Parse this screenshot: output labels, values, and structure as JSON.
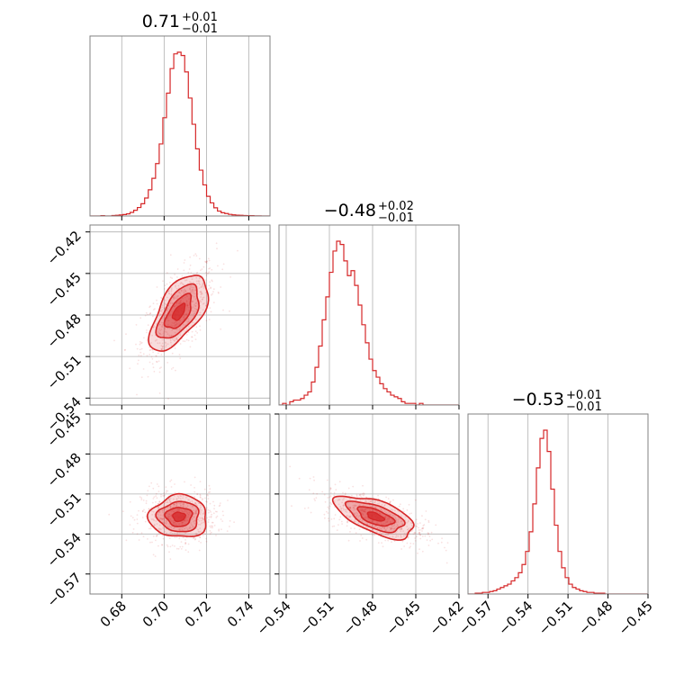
{
  "colors": {
    "accent": "#d62728",
    "grid": "#b0b0b0",
    "frame": "#808080"
  },
  "chart_data": [
    {
      "type": "histogram",
      "position": "row1-col1",
      "title": {
        "value": "0.71",
        "plus": "+0.01",
        "minus": "−0.01"
      },
      "xlim": [
        0.665,
        0.75
      ],
      "x_ticks": [
        0.68,
        0.7,
        0.72,
        0.74
      ],
      "bin_edges_start": 0.665,
      "bin_width": 0.00172,
      "counts": [
        0,
        0,
        0,
        0.002,
        0,
        0,
        0.003,
        0.004,
        0.006,
        0.009,
        0.013,
        0.022,
        0.035,
        0.052,
        0.075,
        0.11,
        0.16,
        0.23,
        0.32,
        0.44,
        0.6,
        0.75,
        0.9,
        0.99,
        1.0,
        0.98,
        0.88,
        0.72,
        0.56,
        0.41,
        0.28,
        0.19,
        0.12,
        0.08,
        0.05,
        0.03,
        0.02,
        0.015,
        0.01,
        0.007,
        0.005,
        0.004,
        0.003,
        0.002,
        0.002,
        0.001,
        0.001,
        0,
        0,
        0
      ]
    },
    {
      "type": "histogram",
      "position": "row2-col2",
      "title": {
        "value": "−0.48",
        "plus": "+0.02",
        "minus": "−0.01"
      },
      "xlim": [
        -0.545,
        -0.42
      ],
      "x_ticks": [
        -0.54,
        -0.51,
        -0.48,
        -0.45,
        -0.42
      ],
      "bin_edges_start": -0.545,
      "bin_width": 0.0025,
      "counts": [
        0,
        0.01,
        0,
        0.02,
        0.03,
        0.03,
        0.04,
        0.06,
        0.08,
        0.14,
        0.23,
        0.36,
        0.52,
        0.66,
        0.81,
        0.94,
        1.0,
        0.98,
        0.88,
        0.79,
        0.82,
        0.73,
        0.61,
        0.49,
        0.38,
        0.28,
        0.21,
        0.17,
        0.13,
        0.1,
        0.08,
        0.06,
        0.05,
        0.04,
        0.02,
        0.01,
        0.01,
        0.01,
        0,
        0.01,
        0,
        0,
        0,
        0,
        0,
        0,
        0,
        0,
        0,
        0
      ]
    },
    {
      "type": "histogram",
      "position": "row3-col3",
      "title": {
        "value": "−0.53",
        "plus": "+0.01",
        "minus": "−0.01"
      },
      "xlim": [
        -0.585,
        -0.45
      ],
      "x_ticks": [
        -0.57,
        -0.54,
        -0.51,
        -0.48,
        -0.45
      ],
      "bin_edges_start": -0.585,
      "bin_width": 0.0027,
      "counts": [
        0,
        0,
        0.005,
        0.005,
        0.01,
        0.01,
        0.015,
        0.02,
        0.03,
        0.04,
        0.05,
        0.06,
        0.08,
        0.1,
        0.13,
        0.18,
        0.26,
        0.38,
        0.55,
        0.77,
        0.95,
        1.0,
        0.87,
        0.64,
        0.42,
        0.26,
        0.16,
        0.1,
        0.06,
        0.04,
        0.03,
        0.02,
        0.015,
        0.01,
        0.01,
        0.005,
        0.005,
        0.005,
        0,
        0,
        0,
        0,
        0,
        0,
        0,
        0,
        0,
        0,
        0,
        0
      ]
    },
    {
      "type": "scatter_contour",
      "position": "row2-col1",
      "xlim": [
        0.665,
        0.75
      ],
      "ylim": [
        -0.545,
        -0.415
      ],
      "x_ticks": [
        0.68,
        0.7,
        0.72,
        0.74
      ],
      "y_ticks": [
        -0.42,
        -0.45,
        -0.48,
        -0.51,
        -0.54
      ],
      "center": [
        0.707,
        -0.478
      ],
      "sigma_x": 0.0065,
      "sigma_y": 0.013,
      "correlation": 0.6
    },
    {
      "type": "scatter_contour",
      "position": "row3-col1",
      "xlim": [
        0.665,
        0.75
      ],
      "ylim": [
        -0.585,
        -0.45
      ],
      "x_ticks": [
        0.68,
        0.7,
        0.72,
        0.74
      ],
      "y_ticks": [
        -0.45,
        -0.48,
        -0.51,
        -0.54,
        -0.57
      ],
      "center": [
        0.707,
        -0.527
      ],
      "sigma_x": 0.0065,
      "sigma_y": 0.0075,
      "correlation": 0.0
    },
    {
      "type": "scatter_contour",
      "position": "row3-col2",
      "xlim": [
        -0.545,
        -0.42
      ],
      "ylim": [
        -0.585,
        -0.45
      ],
      "x_ticks": [
        -0.54,
        -0.51,
        -0.48,
        -0.45,
        -0.42
      ],
      "y_ticks": [],
      "center": [
        -0.478,
        -0.527
      ],
      "sigma_x": 0.013,
      "sigma_y": 0.0075,
      "correlation": -0.6
    }
  ]
}
